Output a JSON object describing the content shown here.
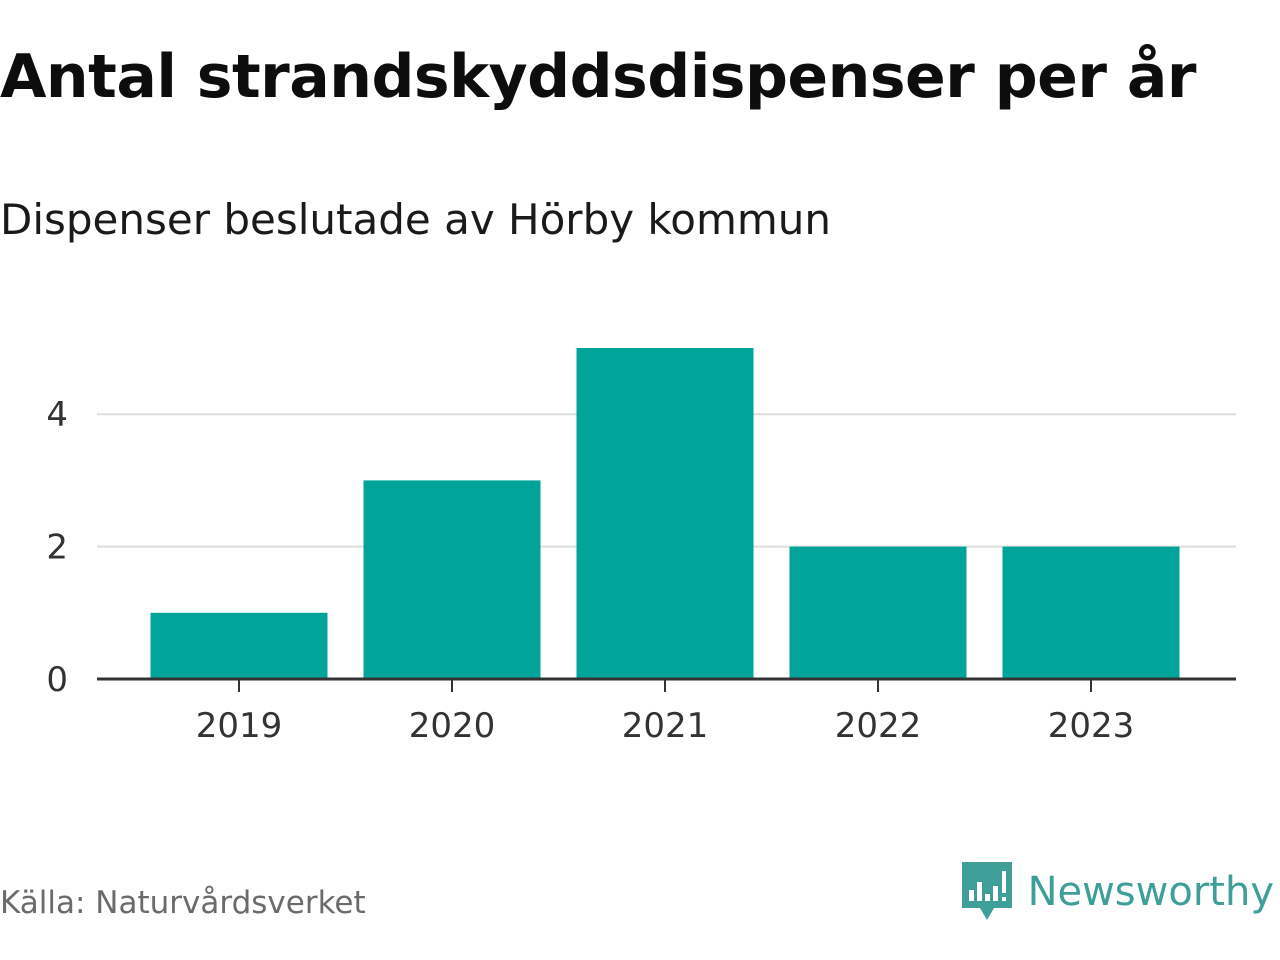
{
  "header": {
    "title": "Antal strandskyddsdispenser per år",
    "subtitle": "Dispenser beslutade av Hörby kommun"
  },
  "chart_data": {
    "type": "bar",
    "categories": [
      "2019",
      "2020",
      "2021",
      "2022",
      "2023"
    ],
    "values": [
      1,
      3,
      5,
      2,
      2
    ],
    "ylim": [
      0,
      5
    ],
    "yticks": [
      0,
      2,
      4
    ],
    "grid": true,
    "bar_color": "#00a499"
  },
  "footer": {
    "source": "Källa: Naturvårdsverket",
    "brand": "Newsworthy",
    "brand_color": "#3d9f98",
    "brand_icon": "bar-chart-speech-bubble-icon"
  }
}
